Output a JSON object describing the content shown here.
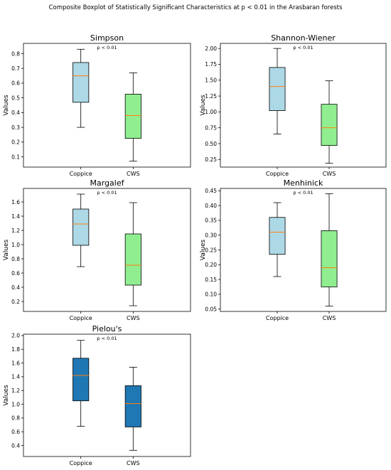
{
  "suptitle": "Composite Boxplot of Statistically Significant Characteristics at p < 0.01 in the Arasbaran forests",
  "chart_data": [
    {
      "type": "box",
      "title": "Simpson",
      "annotation": "p < 0.01",
      "ylabel": "Values",
      "categories": [
        "Coppice",
        "CWS"
      ],
      "ylim": [
        0.03,
        0.87
      ],
      "yticks": [
        0.1,
        0.2,
        0.3,
        0.4,
        0.5,
        0.6,
        0.7,
        0.8
      ],
      "tick_labels": [
        "0.1",
        "0.2",
        "0.3",
        "0.4",
        "0.5",
        "0.6",
        "0.7",
        "0.8"
      ],
      "boxes": [
        {
          "whislo": 0.3,
          "q1": 0.47,
          "med": 0.65,
          "q3": 0.74,
          "whishi": 0.83
        },
        {
          "whislo": 0.07,
          "q1": 0.225,
          "med": 0.38,
          "q3": 0.525,
          "whishi": 0.67
        }
      ],
      "colors": [
        "#add8e6",
        "#90ee90"
      ]
    },
    {
      "type": "box",
      "title": "Shannon-Wiener",
      "annotation": "p < 0.01",
      "ylabel": "Values",
      "categories": [
        "Coppice",
        "CWS"
      ],
      "ylim": [
        0.13,
        2.08
      ],
      "yticks": [
        0.25,
        0.5,
        0.75,
        1.0,
        1.25,
        1.5,
        1.75,
        2.0
      ],
      "tick_labels": [
        "0.25",
        "0.50",
        "0.75",
        "1.00",
        "1.25",
        "1.50",
        "1.75",
        "2.00"
      ],
      "boxes": [
        {
          "whislo": 0.65,
          "q1": 1.02,
          "med": 1.4,
          "q3": 1.7,
          "whishi": 2.0
        },
        {
          "whislo": 0.19,
          "q1": 0.47,
          "med": 0.75,
          "q3": 1.12,
          "whishi": 1.49
        }
      ],
      "colors": [
        "#add8e6",
        "#90ee90"
      ]
    },
    {
      "type": "box",
      "title": "Margalef",
      "annotation": "p < 0.01",
      "ylabel": "Values",
      "categories": [
        "Coppice",
        "CWS"
      ],
      "ylim": [
        0.06,
        1.79
      ],
      "yticks": [
        0.2,
        0.4,
        0.6,
        0.8,
        1.0,
        1.2,
        1.4,
        1.6
      ],
      "tick_labels": [
        "0.2",
        "0.4",
        "0.6",
        "0.8",
        "1.0",
        "1.2",
        "1.4",
        "1.6"
      ],
      "boxes": [
        {
          "whislo": 0.69,
          "q1": 0.99,
          "med": 1.29,
          "q3": 1.5,
          "whishi": 1.71
        },
        {
          "whislo": 0.14,
          "q1": 0.43,
          "med": 0.71,
          "q3": 1.15,
          "whishi": 1.59
        }
      ],
      "colors": [
        "#add8e6",
        "#90ee90"
      ]
    },
    {
      "type": "box",
      "title": "Menhinick",
      "annotation": "p < 0.01",
      "ylabel": "Values",
      "categories": [
        "Coppice",
        "CWS"
      ],
      "ylim": [
        0.042,
        0.458
      ],
      "yticks": [
        0.05,
        0.1,
        0.15,
        0.2,
        0.25,
        0.3,
        0.35,
        0.4,
        0.45
      ],
      "tick_labels": [
        "0.05",
        "0.10",
        "0.15",
        "0.20",
        "0.25",
        "0.30",
        "0.35",
        "0.40",
        "0.45"
      ],
      "boxes": [
        {
          "whislo": 0.16,
          "q1": 0.235,
          "med": 0.31,
          "q3": 0.36,
          "whishi": 0.41
        },
        {
          "whislo": 0.06,
          "q1": 0.125,
          "med": 0.19,
          "q3": 0.315,
          "whishi": 0.44
        }
      ],
      "colors": [
        "#add8e6",
        "#90ee90"
      ]
    },
    {
      "type": "box",
      "title": "Pielou's",
      "annotation": "p < 0.01",
      "ylabel": "Values",
      "categories": [
        "Coppice",
        "CWS"
      ],
      "ylim": [
        0.24,
        2.02
      ],
      "yticks": [
        0.4,
        0.6,
        0.8,
        1.0,
        1.2,
        1.4,
        1.6,
        1.8,
        2.0
      ],
      "tick_labels": [
        "0.4",
        "0.6",
        "0.8",
        "1.0",
        "1.2",
        "1.4",
        "1.6",
        "1.8",
        "2.0"
      ],
      "boxes": [
        {
          "whislo": 0.68,
          "q1": 1.05,
          "med": 1.42,
          "q3": 1.67,
          "whishi": 1.93
        },
        {
          "whislo": 0.33,
          "q1": 0.67,
          "med": 1.01,
          "q3": 1.27,
          "whishi": 1.54
        }
      ],
      "colors": [
        "#1f77b4",
        "#1f77b4"
      ]
    }
  ]
}
